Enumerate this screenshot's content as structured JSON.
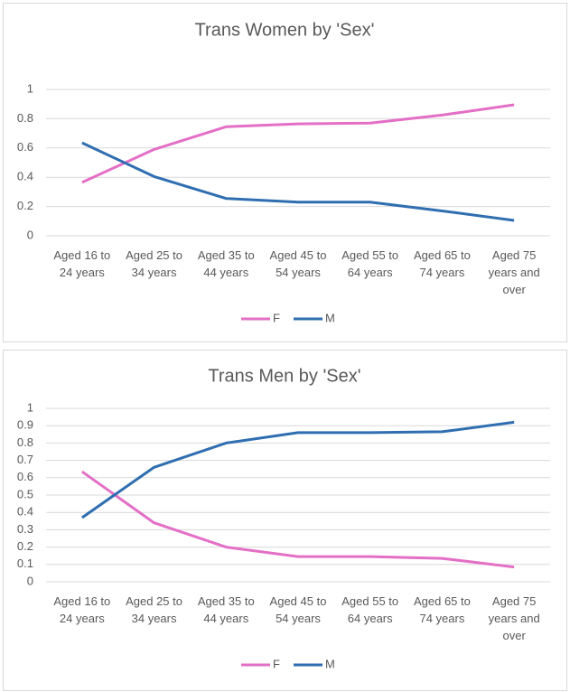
{
  "chart_data": [
    {
      "type": "line",
      "title": "Trans Women by 'Sex'",
      "categories": [
        "Aged 16 to 24 years",
        "Aged 25 to 34 years",
        "Aged 35 to 44 years",
        "Aged 45 to 54 years",
        "Aged 55 to 64 years",
        "Aged 65 to 74 years",
        "Aged 75 years and over"
      ],
      "series": [
        {
          "name": "F",
          "color": "#e36fc6",
          "values": [
            0.365,
            0.59,
            0.745,
            0.765,
            0.77,
            0.825,
            0.895
          ]
        },
        {
          "name": "M",
          "color": "#2f6eb0",
          "values": [
            0.635,
            0.405,
            0.255,
            0.23,
            0.23,
            0.17,
            0.105
          ]
        }
      ],
      "ylim": [
        0,
        1
      ],
      "yticks": [
        0,
        0.2,
        0.4,
        0.6,
        0.8,
        1
      ],
      "grid": true,
      "legend": "bottom"
    },
    {
      "type": "line",
      "title": "Trans Men by 'Sex'",
      "categories": [
        "Aged 16 to 24 years",
        "Aged 25 to 34 years",
        "Aged 35 to 44 years",
        "Aged 45 to 54 years",
        "Aged 55 to 64 years",
        "Aged 65 to 74 years",
        "Aged 75 years and over"
      ],
      "series": [
        {
          "name": "F",
          "color": "#e36fc6",
          "values": [
            0.635,
            0.34,
            0.2,
            0.145,
            0.145,
            0.135,
            0.085
          ]
        },
        {
          "name": "M",
          "color": "#2f6eb0",
          "values": [
            0.37,
            0.66,
            0.8,
            0.86,
            0.86,
            0.865,
            0.92
          ]
        }
      ],
      "ylim": [
        0,
        1
      ],
      "yticks": [
        0,
        0.1,
        0.2,
        0.3,
        0.4,
        0.5,
        0.6,
        0.7,
        0.8,
        0.9,
        1
      ],
      "grid": true,
      "legend": "bottom"
    }
  ]
}
